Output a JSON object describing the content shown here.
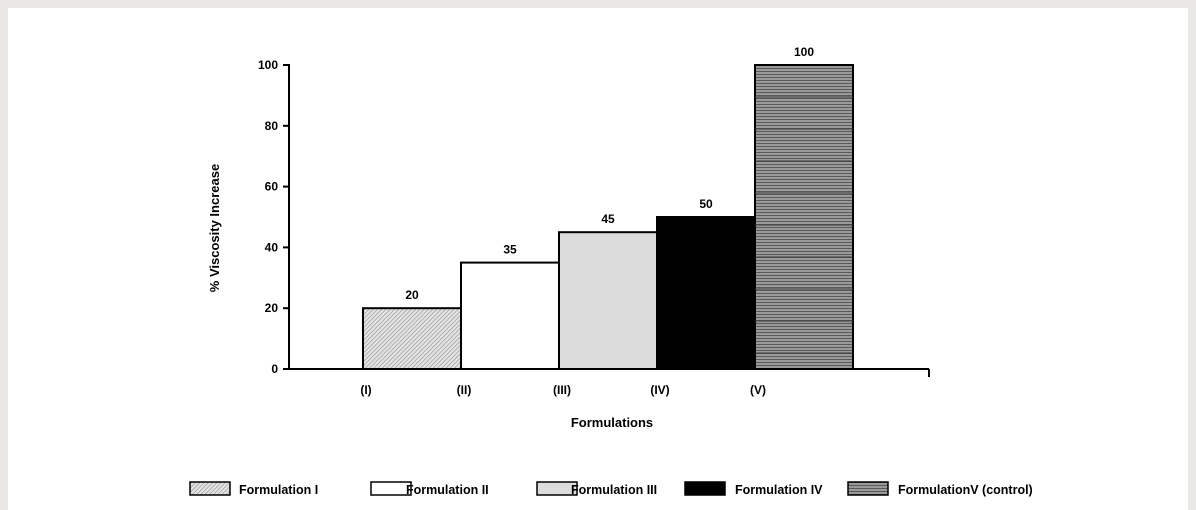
{
  "chart_data": {
    "type": "bar",
    "xlabel": "Formulations",
    "ylabel": "% Viscosity Increase",
    "categories": [
      "(I)",
      "(II)",
      "(III)",
      "(IV)",
      "(V)"
    ],
    "values": [
      20,
      35,
      45,
      50,
      100
    ],
    "data_labels": [
      "20",
      "35",
      "45",
      "50",
      "100"
    ],
    "yticks": [
      0,
      20,
      40,
      60,
      80,
      100
    ],
    "ylim": [
      0,
      100
    ],
    "grid": false,
    "legend_position": "bottom",
    "legend": [
      "Formulation I",
      "Formulation II",
      "Formulation III",
      "Formulation IV",
      "FormulationV (control)"
    ],
    "bar_styles": [
      {
        "pattern": "diagonal-hatch",
        "fill": "#d0d0d0"
      },
      {
        "pattern": "solid",
        "fill": "#ffffff"
      },
      {
        "pattern": "solid",
        "fill": "#dcdcdc"
      },
      {
        "pattern": "solid",
        "fill": "#000000"
      },
      {
        "pattern": "horizontal-lines",
        "fill": "#8a8a8a"
      }
    ]
  }
}
